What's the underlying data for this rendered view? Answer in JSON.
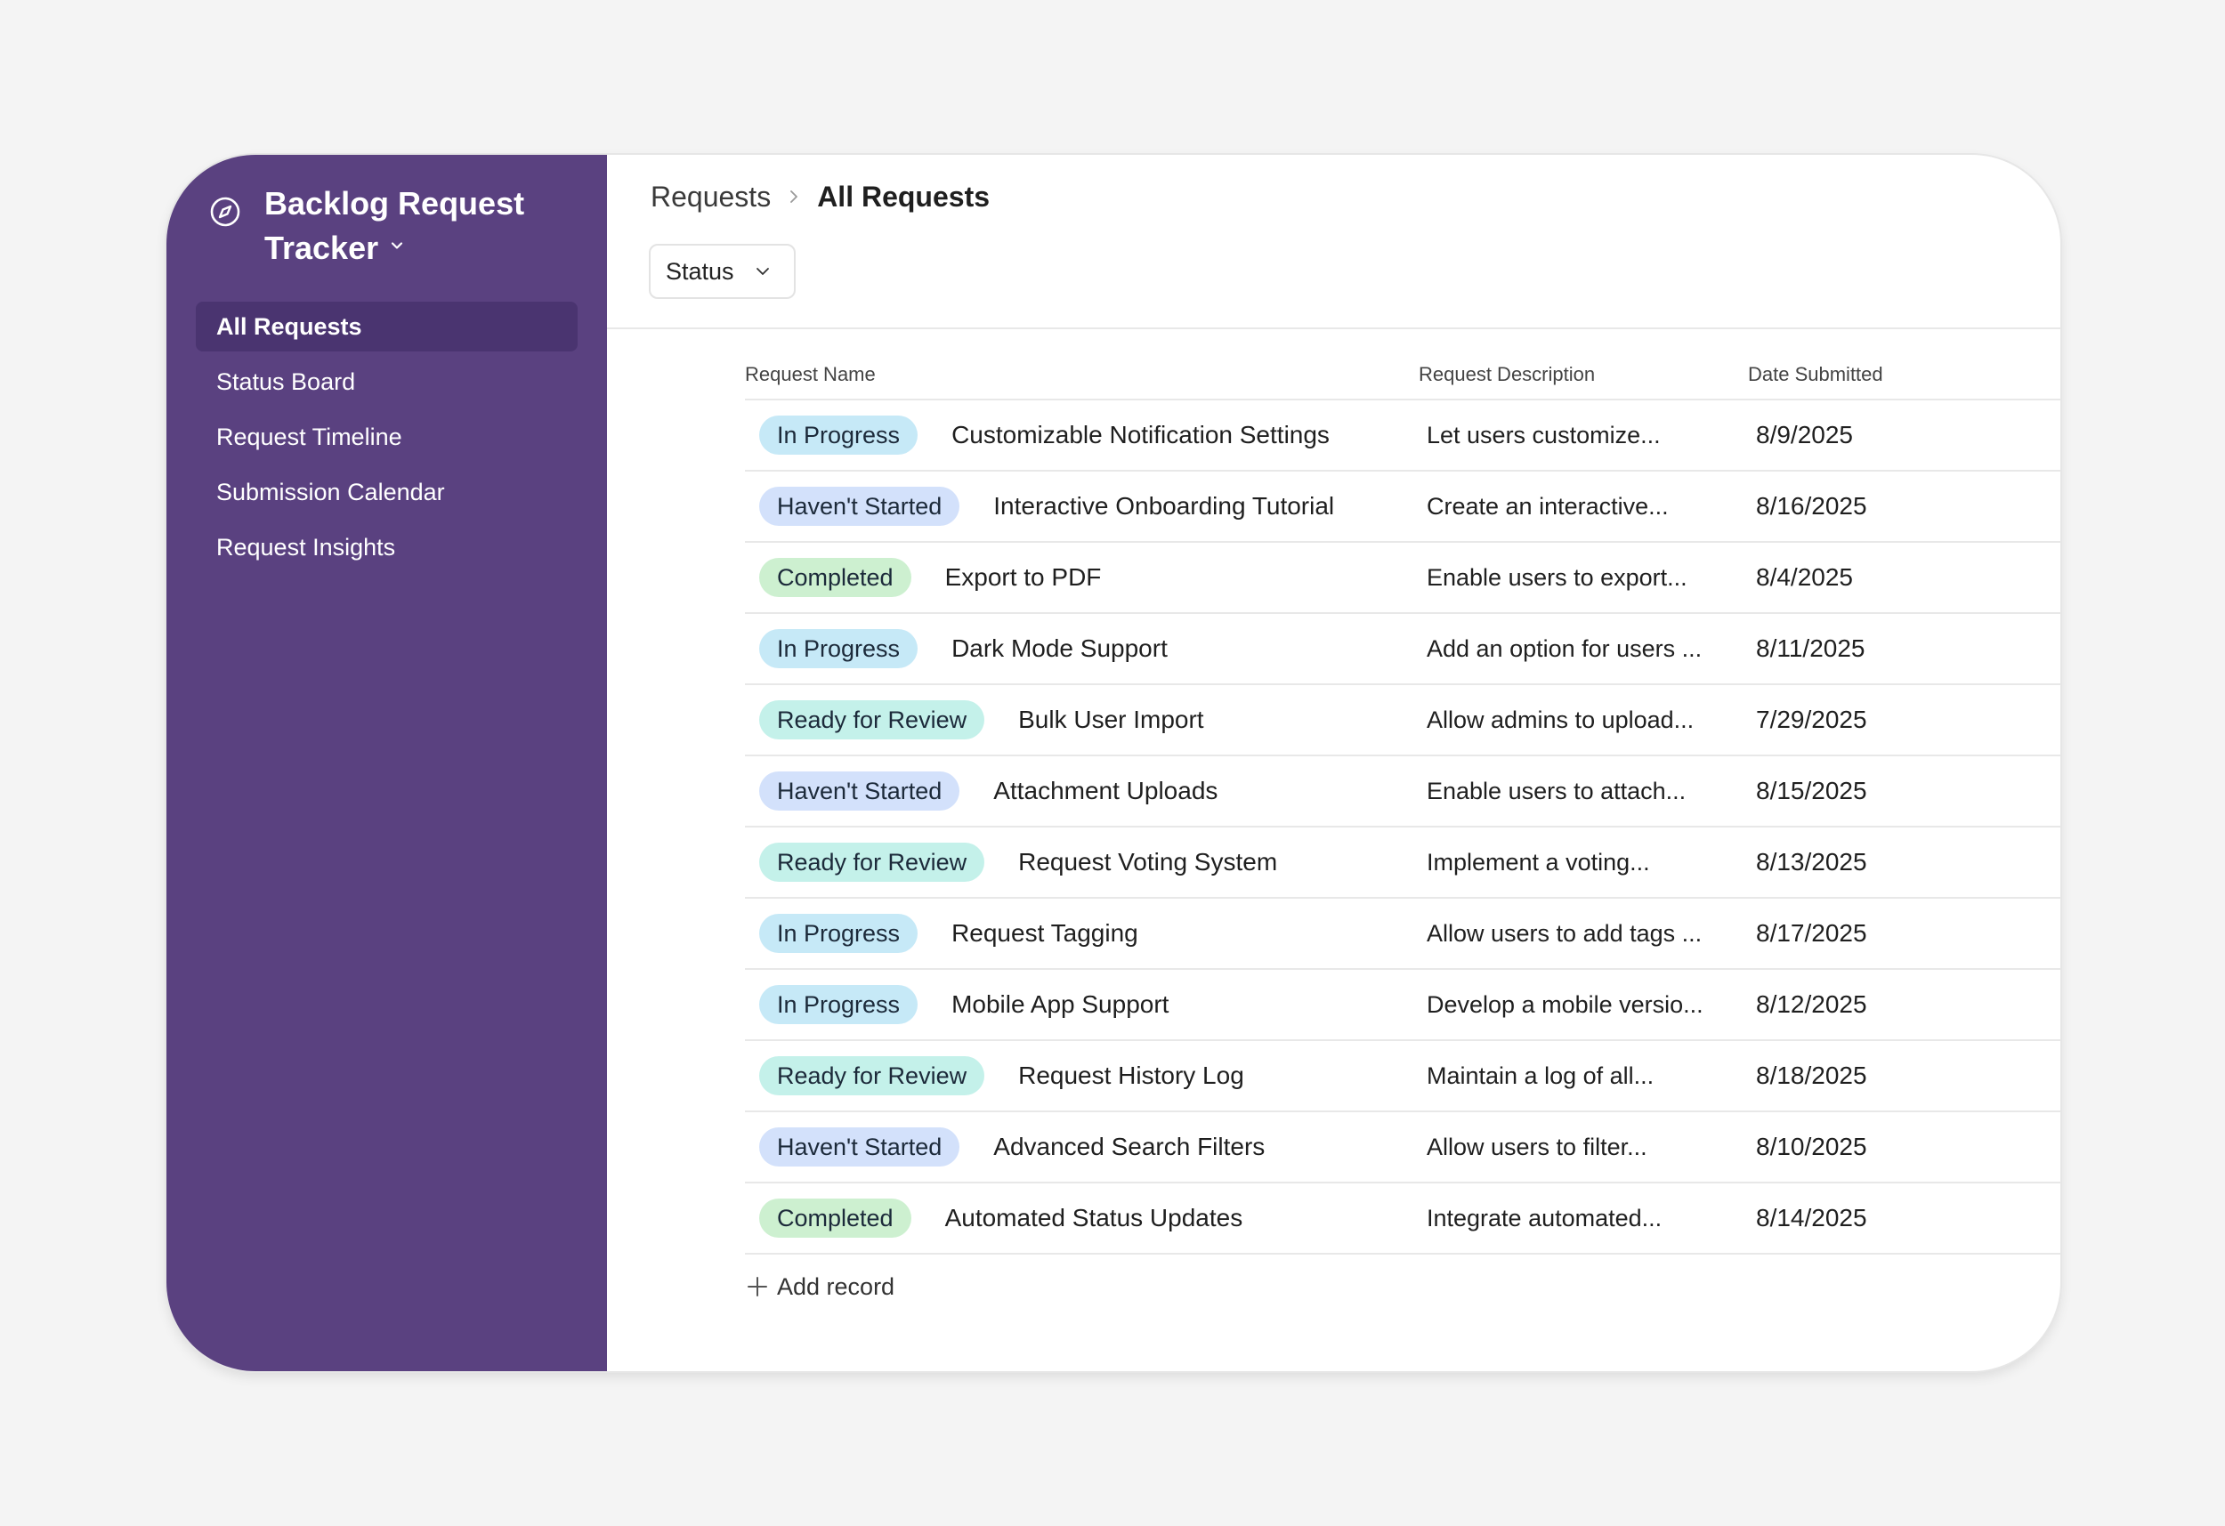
{
  "app": {
    "title": "Backlog Request Tracker",
    "icon": "compass-icon",
    "accent": "#5a4180"
  },
  "sidebar": {
    "items": [
      {
        "label": "All Requests",
        "active": true
      },
      {
        "label": "Status Board",
        "active": false
      },
      {
        "label": "Request Timeline",
        "active": false
      },
      {
        "label": "Submission Calendar",
        "active": false
      },
      {
        "label": "Request Insights",
        "active": false
      }
    ]
  },
  "breadcrumb": {
    "root": "Requests",
    "current": "All Requests"
  },
  "filter": {
    "label": "Status"
  },
  "table": {
    "headers": {
      "name": "Request Name",
      "description": "Request Description",
      "date": "Date Submitted"
    },
    "status_colors": {
      "In Progress": "#c6e9f7",
      "Haven't Started": "#d3e1fb",
      "Completed": "#cdf0d0",
      "Ready for Review": "#c4f1ea"
    },
    "rows": [
      {
        "status": "In Progress",
        "name": "Customizable Notification Settings",
        "description": "Let users customize...",
        "date": "8/9/2025"
      },
      {
        "status": "Haven't Started",
        "name": "Interactive Onboarding Tutorial",
        "description": "Create an interactive...",
        "date": "8/16/2025"
      },
      {
        "status": "Completed",
        "name": "Export to PDF",
        "description": "Enable users to export...",
        "date": "8/4/2025"
      },
      {
        "status": "In Progress",
        "name": "Dark Mode Support",
        "description": "Add an option for users ...",
        "date": "8/11/2025"
      },
      {
        "status": "Ready for Review",
        "name": "Bulk User Import",
        "description": "Allow admins to upload...",
        "date": "7/29/2025"
      },
      {
        "status": "Haven't Started",
        "name": "Attachment Uploads",
        "description": "Enable users to attach...",
        "date": "8/15/2025"
      },
      {
        "status": "Ready for Review",
        "name": "Request Voting System",
        "description": "Implement a voting...",
        "date": "8/13/2025"
      },
      {
        "status": "In Progress",
        "name": "Request Tagging",
        "description": "Allow users to add tags ...",
        "date": "8/17/2025"
      },
      {
        "status": "In Progress",
        "name": "Mobile App Support",
        "description": "Develop a mobile versio...",
        "date": "8/12/2025"
      },
      {
        "status": "Ready for Review",
        "name": "Request History Log",
        "description": "Maintain a log of all...",
        "date": "8/18/2025"
      },
      {
        "status": "Haven't Started",
        "name": "Advanced Search Filters",
        "description": "Allow users to filter...",
        "date": "8/10/2025"
      },
      {
        "status": "Completed",
        "name": "Automated Status Updates",
        "description": "Integrate automated...",
        "date": "8/14/2025"
      }
    ],
    "add_record_label": "Add record"
  }
}
